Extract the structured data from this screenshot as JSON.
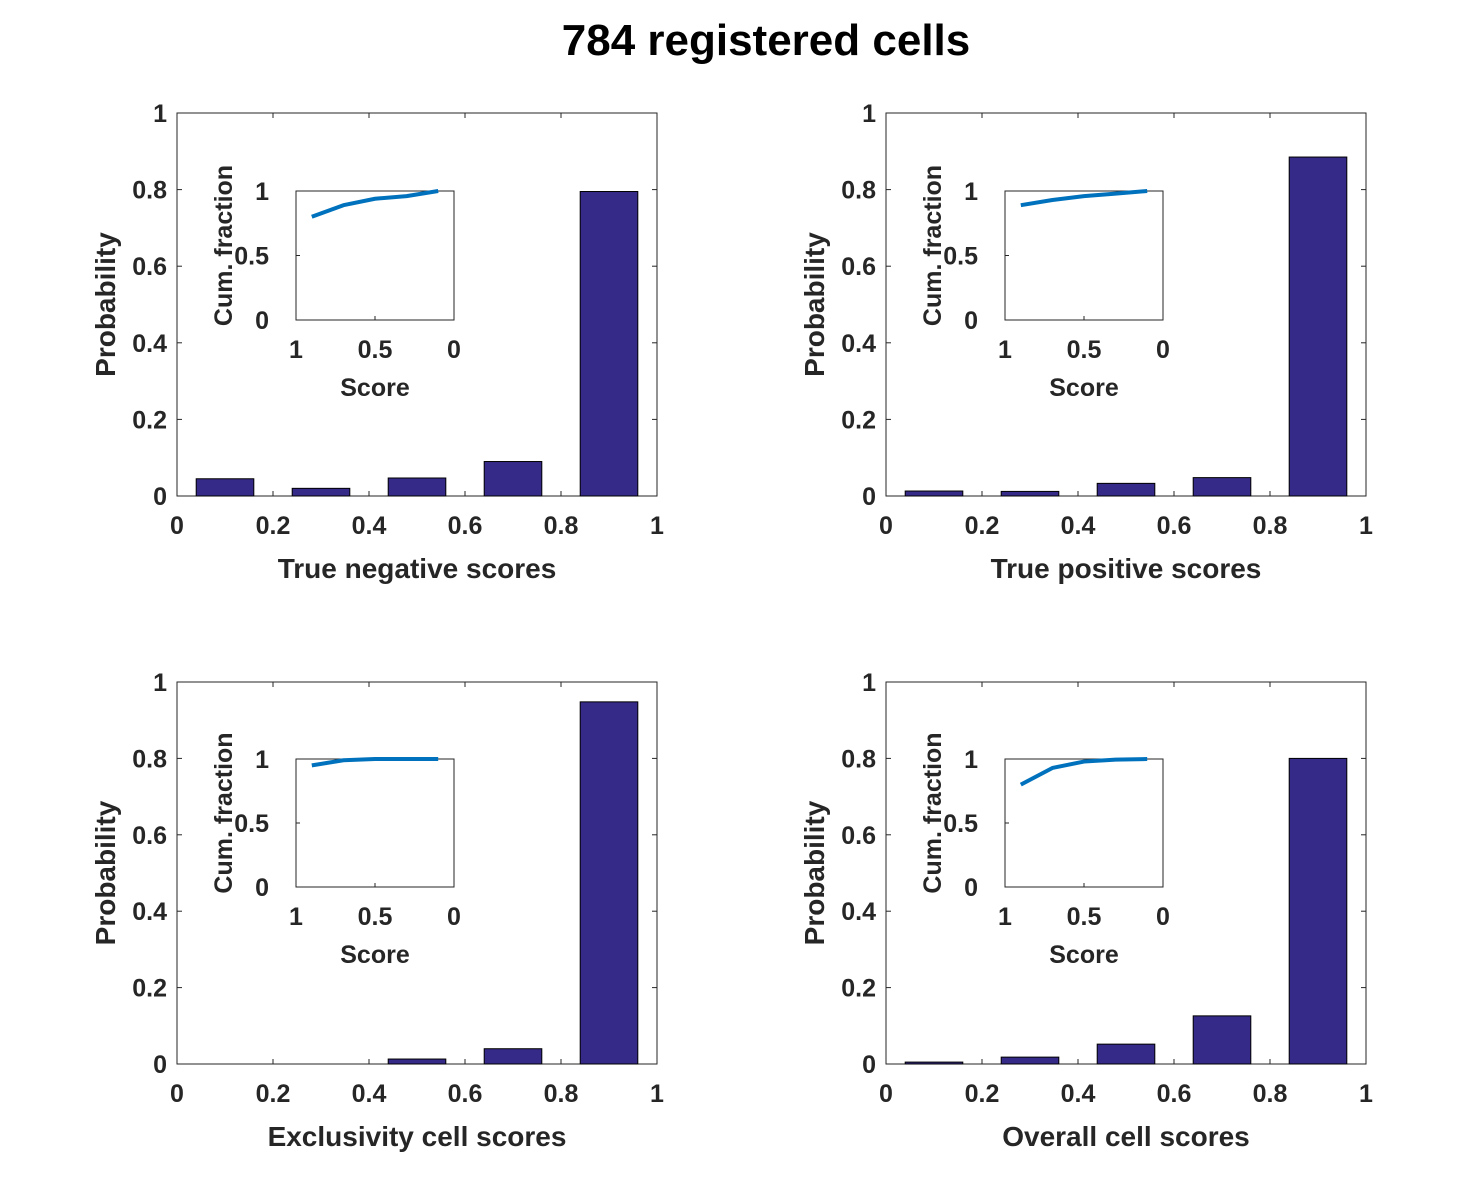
{
  "figure": {
    "title": "784 registered cells"
  },
  "colors": {
    "bar": "#352A87",
    "inset_line": "#0072BD",
    "axis": "#262626",
    "background": "#FFFFFF"
  },
  "chart_data": [
    {
      "type": "bar",
      "xlabel": "True negative scores",
      "ylabel": "Probability",
      "xlim": [
        0,
        1
      ],
      "ylim": [
        0,
        1
      ],
      "xticks": [
        "0",
        "0.2",
        "0.4",
        "0.6",
        "0.8",
        "1"
      ],
      "yticks": [
        "0",
        "0.2",
        "0.4",
        "0.6",
        "0.8",
        "1"
      ],
      "bins": [
        [
          0,
          0.2
        ],
        [
          0.2,
          0.4
        ],
        [
          0.4,
          0.6
        ],
        [
          0.6,
          0.8
        ],
        [
          0.8,
          1
        ]
      ],
      "values": [
        0.045,
        0.02,
        0.047,
        0.09,
        0.795
      ],
      "inset": {
        "type": "line",
        "xlabel": "Score",
        "ylabel": "Cum. fraction",
        "xlim": [
          1,
          0
        ],
        "ylim": [
          0,
          1
        ],
        "x_reversed": true,
        "xticks": [
          "1",
          "0.5",
          "0"
        ],
        "yticks": [
          "0",
          "0.5",
          "1"
        ],
        "x": [
          0.9,
          0.7,
          0.5,
          0.3,
          0.1
        ],
        "y": [
          0.8,
          0.89,
          0.94,
          0.96,
          1.0
        ]
      }
    },
    {
      "type": "bar",
      "xlabel": "True positive scores",
      "ylabel": "Probability",
      "xlim": [
        0,
        1
      ],
      "ylim": [
        0,
        1
      ],
      "xticks": [
        "0",
        "0.2",
        "0.4",
        "0.6",
        "0.8",
        "1"
      ],
      "yticks": [
        "0",
        "0.2",
        "0.4",
        "0.6",
        "0.8",
        "1"
      ],
      "bins": [
        [
          0,
          0.2
        ],
        [
          0.2,
          0.4
        ],
        [
          0.4,
          0.6
        ],
        [
          0.6,
          0.8
        ],
        [
          0.8,
          1
        ]
      ],
      "values": [
        0.013,
        0.012,
        0.033,
        0.048,
        0.885
      ],
      "inset": {
        "type": "line",
        "xlabel": "Score",
        "ylabel": "Cum. fraction",
        "xlim": [
          1,
          0
        ],
        "ylim": [
          0,
          1
        ],
        "x_reversed": true,
        "xticks": [
          "1",
          "0.5",
          "0"
        ],
        "yticks": [
          "0",
          "0.5",
          "1"
        ],
        "x": [
          0.9,
          0.7,
          0.5,
          0.3,
          0.1
        ],
        "y": [
          0.89,
          0.93,
          0.96,
          0.98,
          1.0
        ]
      }
    },
    {
      "type": "bar",
      "xlabel": "Exclusivity cell scores",
      "ylabel": "Probability",
      "xlim": [
        0,
        1
      ],
      "ylim": [
        0,
        1
      ],
      "xticks": [
        "0",
        "0.2",
        "0.4",
        "0.6",
        "0.8",
        "1"
      ],
      "yticks": [
        "0",
        "0.2",
        "0.4",
        "0.6",
        "0.8",
        "1"
      ],
      "bins": [
        [
          0,
          0.2
        ],
        [
          0.2,
          0.4
        ],
        [
          0.4,
          0.6
        ],
        [
          0.6,
          0.8
        ],
        [
          0.8,
          1
        ]
      ],
      "values": [
        0,
        0,
        0.013,
        0.04,
        0.948
      ],
      "inset": {
        "type": "line",
        "xlabel": "Score",
        "ylabel": "Cum. fraction",
        "xlim": [
          1,
          0
        ],
        "ylim": [
          0,
          1
        ],
        "x_reversed": true,
        "xticks": [
          "1",
          "0.5",
          "0"
        ],
        "yticks": [
          "0",
          "0.5",
          "1"
        ],
        "x": [
          0.9,
          0.7,
          0.5,
          0.3,
          0.1
        ],
        "y": [
          0.95,
          0.99,
          1.0,
          1.0,
          1.0
        ]
      }
    },
    {
      "type": "bar",
      "xlabel": "Overall cell scores",
      "ylabel": "Probability",
      "xlim": [
        0,
        1
      ],
      "ylim": [
        0,
        1
      ],
      "xticks": [
        "0",
        "0.2",
        "0.4",
        "0.6",
        "0.8",
        "1"
      ],
      "yticks": [
        "0",
        "0.2",
        "0.4",
        "0.6",
        "0.8",
        "1"
      ],
      "bins": [
        [
          0,
          0.2
        ],
        [
          0.2,
          0.4
        ],
        [
          0.4,
          0.6
        ],
        [
          0.6,
          0.8
        ],
        [
          0.8,
          1
        ]
      ],
      "values": [
        0.005,
        0.018,
        0.052,
        0.126,
        0.8
      ],
      "inset": {
        "type": "line",
        "xlabel": "Score",
        "ylabel": "Cum. fraction",
        "xlim": [
          1,
          0
        ],
        "ylim": [
          0,
          1
        ],
        "x_reversed": true,
        "xticks": [
          "1",
          "0.5",
          "0"
        ],
        "yticks": [
          "0",
          "0.5",
          "1"
        ],
        "x": [
          0.9,
          0.7,
          0.5,
          0.3,
          0.1
        ],
        "y": [
          0.8,
          0.93,
          0.98,
          0.995,
          1.0
        ]
      }
    }
  ]
}
